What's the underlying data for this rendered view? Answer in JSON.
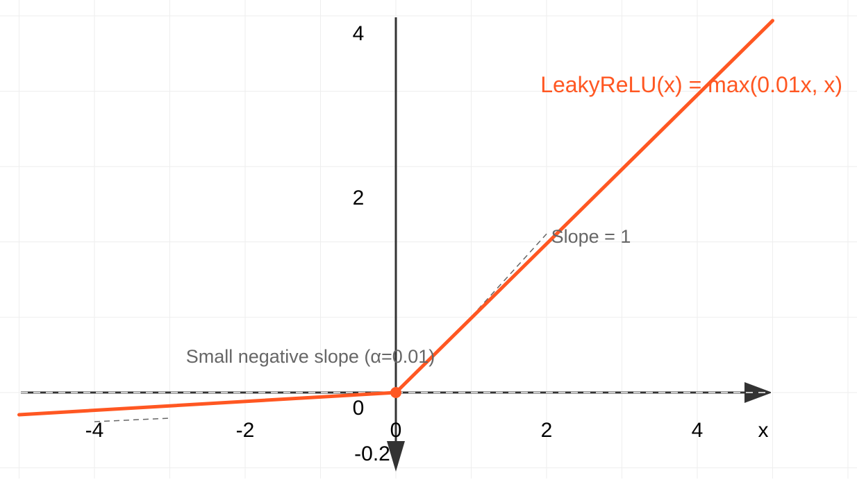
{
  "chart_data": {
    "type": "line",
    "title": "",
    "function_label": "LeakyReLU(x) = max(0.01x, x)",
    "xlabel": "x",
    "ylabel": "",
    "alpha": 0.01,
    "xlim": [
      -5,
      5
    ],
    "ylim": [
      -0.2,
      4.3
    ],
    "x_ticks": [
      {
        "value": -4,
        "label": "-4"
      },
      {
        "value": -2,
        "label": "-2"
      },
      {
        "value": 0,
        "label": "0"
      },
      {
        "value": 2,
        "label": "2"
      },
      {
        "value": 4,
        "label": "4"
      }
    ],
    "y_ticks": [
      {
        "value": 4,
        "label": "4"
      },
      {
        "value": 2,
        "label": "2"
      },
      {
        "value": 0,
        "label": "0"
      },
      {
        "value": -0.2,
        "label": "-0.2"
      }
    ],
    "series": [
      {
        "name": "LeakyReLU(x) = max(0.01x, x)",
        "color": "#FF5722",
        "x": [
          -5,
          0,
          5
        ],
        "y": [
          -0.05,
          0,
          5
        ]
      }
    ],
    "highlight_point": {
      "x": 0,
      "y": 0
    },
    "annotations": [
      {
        "text": "Small negative slope (α=0.01)",
        "x": -3,
        "y": 0.45
      },
      {
        "text": "Slope = 1",
        "x": 2,
        "y": 2.05
      }
    ],
    "colors": {
      "line": "#FF5722",
      "axis": "#333333",
      "grid": "#eeeeee",
      "annotation": "#666666",
      "helper_dash": "#666666"
    },
    "grid": true,
    "legend": "none"
  }
}
